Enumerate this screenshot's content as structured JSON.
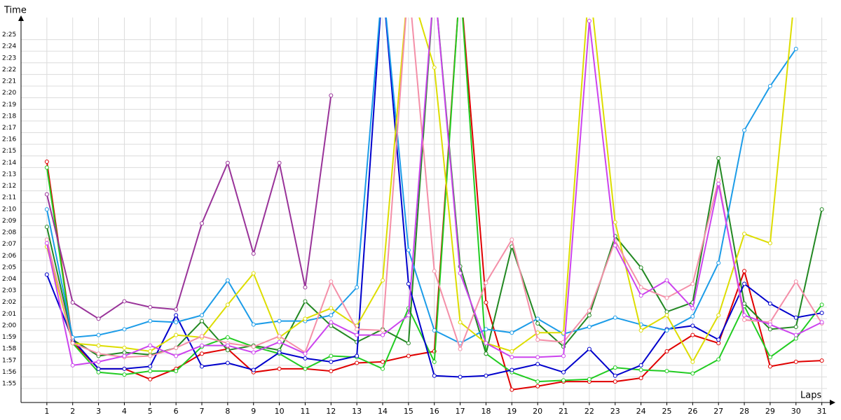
{
  "chart_data": {
    "type": "line",
    "x_label": "Laps",
    "y_label": "Time",
    "x": [
      1,
      2,
      3,
      4,
      5,
      6,
      7,
      8,
      9,
      10,
      11,
      12,
      13,
      14,
      15,
      16,
      17,
      18,
      19,
      20,
      21,
      22,
      23,
      24,
      25,
      26,
      27,
      28,
      29,
      30,
      31
    ],
    "xlim": [
      0,
      31.2
    ],
    "xticks": [
      1,
      2,
      3,
      4,
      5,
      6,
      7,
      8,
      9,
      10,
      11,
      12,
      13,
      14,
      15,
      16,
      17,
      18,
      19,
      20,
      21,
      22,
      23,
      24,
      25,
      26,
      27,
      28,
      29,
      30,
      31
    ],
    "ylim": [
      113.8,
      146.9
    ],
    "yticks": [
      {
        "value": 115,
        "label": "1:55"
      },
      {
        "value": 116,
        "label": "1:56"
      },
      {
        "value": 117,
        "label": "1:57"
      },
      {
        "value": 118,
        "label": "1:58"
      },
      {
        "value": 119,
        "label": "1:59"
      },
      {
        "value": 120,
        "label": "2:00"
      },
      {
        "value": 121,
        "label": "2:01"
      },
      {
        "value": 122,
        "label": "2:02"
      },
      {
        "value": 123,
        "label": "2:03"
      },
      {
        "value": 124,
        "label": "2:04"
      },
      {
        "value": 125,
        "label": "2:05"
      },
      {
        "value": 126,
        "label": "2:06"
      },
      {
        "value": 127,
        "label": "2:07"
      },
      {
        "value": 128,
        "label": "2:08"
      },
      {
        "value": 129,
        "label": "2:09"
      },
      {
        "value": 130,
        "label": "2:10"
      },
      {
        "value": 131,
        "label": "2:11"
      },
      {
        "value": 132,
        "label": "2:12"
      },
      {
        "value": 133,
        "label": "2:13"
      },
      {
        "value": 134,
        "label": "2:14"
      },
      {
        "value": 135,
        "label": "2:15"
      },
      {
        "value": 136,
        "label": "2:16"
      },
      {
        "value": 137,
        "label": "2:17"
      },
      {
        "value": 138,
        "label": "2:18"
      },
      {
        "value": 139,
        "label": "2:19"
      },
      {
        "value": 140,
        "label": "2:20"
      },
      {
        "value": 141,
        "label": "2:21"
      },
      {
        "value": 142,
        "label": "2:22"
      },
      {
        "value": 143,
        "label": "2:23"
      },
      {
        "value": 144,
        "label": "2:24"
      },
      {
        "value": 145,
        "label": "2:25"
      }
    ],
    "grid": true,
    "series": [
      {
        "color": "#e00000",
        "values": [
          134.5,
          119.0,
          116.7,
          116.7,
          115.8,
          116.7,
          118.0,
          118.4,
          116.4,
          116.7,
          116.7,
          116.5,
          117.2,
          117.3,
          117.8,
          118.2,
          150,
          122.4,
          114.9,
          115.2,
          115.6,
          115.6,
          115.6,
          115.9,
          118.2,
          119.6,
          118.9,
          125.1,
          116.9,
          117.3,
          117.4
        ]
      },
      {
        "color": "#22cc22",
        "values": [
          134.0,
          118.9,
          116.4,
          116.2,
          116.5,
          116.5,
          118.6,
          119.4,
          118.6,
          118.0,
          116.7,
          117.8,
          117.7,
          116.7,
          121.9,
          117.3,
          150,
          118.0,
          116.4,
          115.6,
          115.7,
          115.8,
          116.8,
          116.6,
          116.5,
          116.3,
          117.5,
          122.1,
          117.7,
          119.3,
          122.2
        ]
      },
      {
        "color": "#228822",
        "values": [
          128.9,
          119.2,
          117.8,
          118.1,
          117.9,
          118.5,
          120.8,
          118.3,
          118.7,
          118.3,
          122.5,
          120.4,
          119.0,
          120.1,
          118.9,
          150,
          125.5,
          118.0,
          127.2,
          120.6,
          118.6,
          121.3,
          128.1,
          125.4,
          121.6,
          122.4,
          134.8,
          122.3,
          120.1,
          120.3,
          130.4
        ]
      },
      {
        "color": "#0000cc",
        "values": [
          124.8,
          119.2,
          116.7,
          116.7,
          116.9,
          121.3,
          116.9,
          117.2,
          116.6,
          118.1,
          117.6,
          117.3,
          117.8,
          150,
          124.0,
          116.1,
          116.0,
          116.1,
          116.6,
          117.1,
          116.4,
          118.4,
          116.1,
          117.0,
          120.1,
          120.4,
          119.2,
          124.0,
          122.3,
          121.1,
          121.5
        ]
      },
      {
        "color": "#1c9ce8",
        "values": [
          130.4,
          119.4,
          119.6,
          120.1,
          120.8,
          120.7,
          121.3,
          124.3,
          120.5,
          120.8,
          120.8,
          121.3,
          123.7,
          150,
          126.9,
          120.0,
          118.9,
          120.1,
          119.8,
          121.0,
          119.7,
          120.3,
          121.1,
          120.5,
          120.0,
          121.2,
          125.8,
          137.2,
          141.0,
          144.2,
          null
        ]
      },
      {
        "color": "#dddd00",
        "values": [
          127.2,
          118.9,
          118.7,
          118.5,
          118.2,
          119.6,
          119.4,
          122.2,
          124.9,
          119.4,
          121.0,
          121.9,
          120.4,
          124.3,
          150,
          142.6,
          120.7,
          118.9,
          118.2,
          119.8,
          119.8,
          150,
          129.3,
          120.0,
          121.3,
          117.3,
          121.3,
          128.3,
          127.5,
          150,
          null
        ]
      },
      {
        "color": "#f48fa8",
        "values": [
          127.8,
          118.9,
          118.0,
          117.7,
          117.8,
          118.5,
          119.5,
          118.9,
          118.6,
          119.5,
          118.1,
          124.2,
          120.1,
          120.0,
          150,
          125.1,
          118.4,
          124.1,
          127.8,
          119.2,
          119.0,
          121.7,
          127.7,
          123.7,
          122.8,
          124.0,
          132.9,
          120.9,
          120.7,
          124.2,
          120.6
        ]
      },
      {
        "color": "#cc44ee",
        "values": [
          127.5,
          117.0,
          117.3,
          117.8,
          118.7,
          117.8,
          118.7,
          118.7,
          118.1,
          119.0,
          118.0,
          120.7,
          119.6,
          119.6,
          121.3,
          150,
          124.9,
          118.9,
          117.7,
          117.7,
          117.8,
          146.6,
          127.3,
          123.0,
          124.3,
          121.9,
          132.6,
          121.3,
          120.5,
          119.6,
          120.7
        ]
      },
      {
        "color": "#993399",
        "values": [
          131.7,
          122.4,
          121.0,
          122.5,
          122.0,
          121.8,
          129.2,
          134.4,
          126.6,
          134.4,
          123.7,
          140.2,
          null,
          null,
          null,
          null,
          null,
          null,
          null,
          null,
          null,
          null,
          null,
          null,
          null,
          null,
          null,
          null,
          null,
          null,
          null
        ]
      }
    ]
  }
}
